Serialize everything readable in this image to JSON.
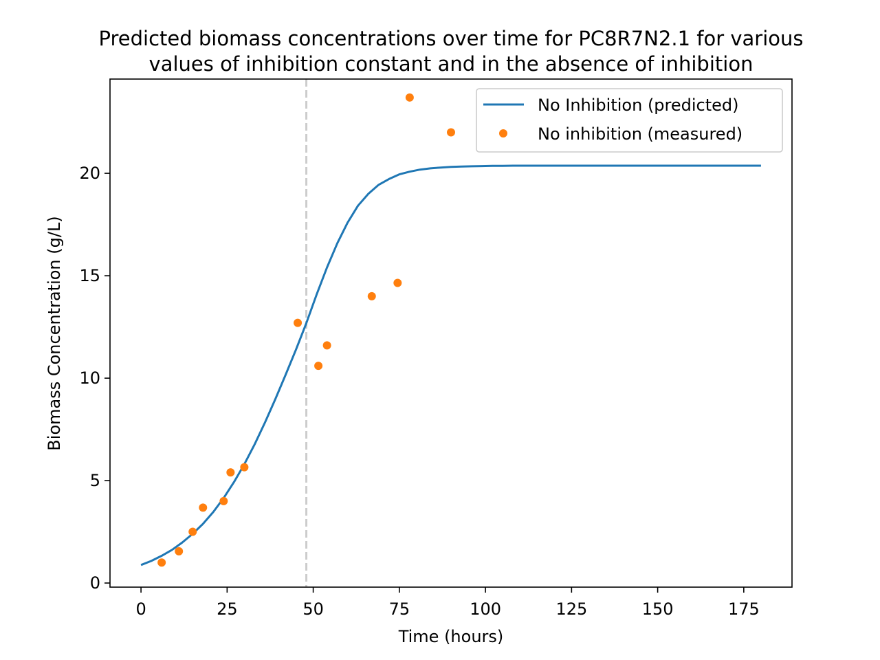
{
  "chart_data": {
    "type": "line",
    "title_lines": [
      "Predicted biomass concentrations over time for PC8R7N2.1 for various",
      "values of inhibition constant and in the absence of inhibition"
    ],
    "xlabel": "Time (hours)",
    "ylabel": "Biomass Concentration (g/L)",
    "xlim": [
      -9,
      189
    ],
    "ylim": [
      -0.2,
      24.6
    ],
    "x_ticks": [
      0,
      25,
      50,
      75,
      100,
      125,
      150,
      175
    ],
    "y_ticks": [
      0,
      5,
      10,
      15,
      20
    ],
    "grid": false,
    "legend_position": "upper right",
    "vline": {
      "x": 48,
      "color": "#cccccc",
      "style": "dashed"
    },
    "series": [
      {
        "name": "No Inhibition (predicted)",
        "kind": "line",
        "color": "#1f77b4",
        "x": [
          0,
          3,
          6,
          9,
          12,
          15,
          18,
          21,
          24,
          27,
          30,
          33,
          36,
          39,
          42,
          45,
          48,
          51,
          54,
          57,
          60,
          63,
          66,
          69,
          72,
          75,
          78,
          81,
          84,
          87,
          90,
          93,
          96,
          99,
          102,
          105,
          108,
          111,
          114,
          117,
          120,
          125,
          130,
          140,
          150,
          160,
          170,
          180
        ],
        "y": [
          0.88,
          1.08,
          1.33,
          1.62,
          1.98,
          2.4,
          2.89,
          3.47,
          4.15,
          4.93,
          5.8,
          6.77,
          7.84,
          8.98,
          10.17,
          11.39,
          12.69,
          14.09,
          15.4,
          16.59,
          17.6,
          18.42,
          19.0,
          19.44,
          19.72,
          19.95,
          20.08,
          20.18,
          20.24,
          20.28,
          20.31,
          20.33,
          20.34,
          20.35,
          20.36,
          20.36,
          20.37,
          20.37,
          20.37,
          20.37,
          20.37,
          20.37,
          20.37,
          20.37,
          20.37,
          20.37,
          20.37,
          20.37
        ]
      },
      {
        "name": "No inhibition (measured)",
        "kind": "scatter",
        "color": "#ff7f0e",
        "x": [
          6,
          11,
          15,
          18,
          24,
          26,
          30,
          45.5,
          51.5,
          54,
          67,
          74.5,
          78,
          90
        ],
        "y": [
          1.0,
          1.55,
          2.5,
          3.68,
          4.0,
          5.4,
          5.65,
          12.7,
          10.6,
          11.6,
          14.0,
          14.65,
          23.7,
          22.0
        ]
      }
    ]
  }
}
